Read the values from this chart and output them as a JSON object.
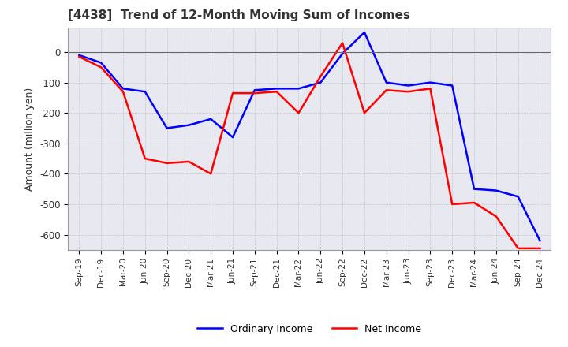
{
  "title": "[4438]  Trend of 12-Month Moving Sum of Incomes",
  "ylabel": "Amount (million yen)",
  "ylim": [
    -650,
    80
  ],
  "yticks": [
    0,
    -100,
    -200,
    -300,
    -400,
    -500,
    -600
  ],
  "x_labels": [
    "Sep-19",
    "Dec-19",
    "Mar-20",
    "Jun-20",
    "Sep-20",
    "Dec-20",
    "Mar-21",
    "Jun-21",
    "Sep-21",
    "Dec-21",
    "Mar-22",
    "Jun-22",
    "Sep-22",
    "Dec-22",
    "Mar-23",
    "Jun-23",
    "Sep-23",
    "Dec-23",
    "Mar-24",
    "Jun-24",
    "Sep-24",
    "Dec-24"
  ],
  "ordinary_income": [
    -10,
    -35,
    -120,
    -130,
    -250,
    -240,
    -220,
    -280,
    -125,
    -120,
    -120,
    -100,
    -5,
    65,
    -100,
    -110,
    -100,
    -110,
    -450,
    -455,
    -475,
    -620
  ],
  "net_income": [
    -15,
    -50,
    -130,
    -350,
    -365,
    -360,
    -400,
    -135,
    -135,
    -130,
    -200,
    -80,
    30,
    -200,
    -125,
    -130,
    -120,
    -500,
    -495,
    -540,
    -645,
    -645
  ],
  "ordinary_color": "#0000ff",
  "net_color": "#ff0000",
  "bg_color": "#ffffff",
  "plot_bg_color": "#e8e8f0",
  "grid_color": "#aaaaaa",
  "legend_labels": [
    "Ordinary Income",
    "Net Income"
  ]
}
